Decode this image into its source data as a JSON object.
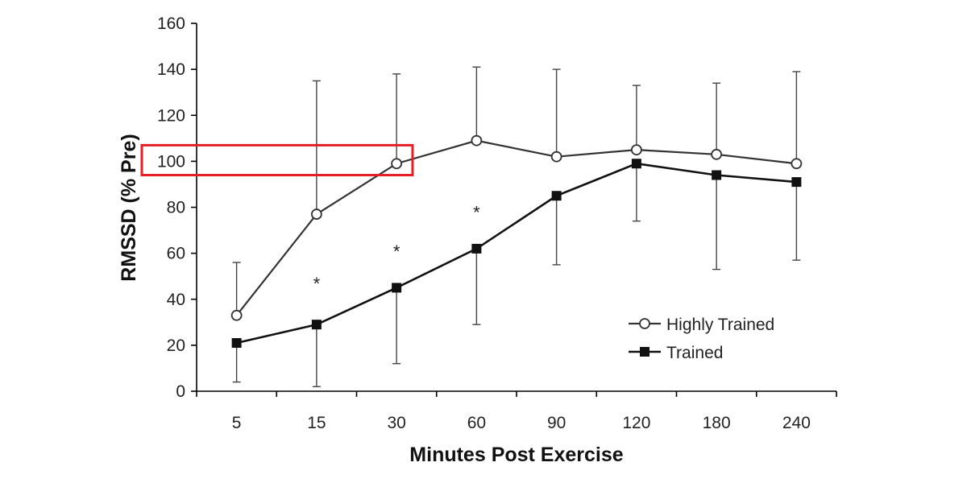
{
  "chart_data": {
    "type": "line",
    "categories": [
      "5",
      "15",
      "30",
      "60",
      "90",
      "120",
      "180",
      "240"
    ],
    "xlabel": "Minutes Post Exercise",
    "ylabel": "RMSSD (% Pre)",
    "ylim": [
      0,
      160
    ],
    "yticks": [
      "0",
      "20",
      "40",
      "60",
      "80",
      "100",
      "120",
      "140",
      "160"
    ],
    "grid": false,
    "legend_position": "lower-right",
    "series": [
      {
        "name": "Highly Trained",
        "marker": "open-circle",
        "color": "#333333",
        "values": [
          33,
          77,
          99,
          109,
          102,
          105,
          103,
          99
        ],
        "error_upper": [
          56,
          135,
          138,
          141,
          140,
          133,
          134,
          139
        ]
      },
      {
        "name": "Trained",
        "marker": "filled-square",
        "color": "#111111",
        "values": [
          21,
          29,
          45,
          62,
          85,
          99,
          94,
          91
        ],
        "error_lower": [
          4,
          2,
          12,
          29,
          55,
          74,
          53,
          57
        ]
      }
    ],
    "annotations": [
      {
        "text": "*",
        "category": "15",
        "y": 48
      },
      {
        "text": "*",
        "category": "30",
        "y": 62
      },
      {
        "text": "*",
        "category": "60",
        "y": 79
      }
    ],
    "highlight_box": {
      "color": "#e31e24",
      "y_range": [
        94,
        107
      ],
      "category_span": [
        "5",
        "30"
      ]
    }
  }
}
